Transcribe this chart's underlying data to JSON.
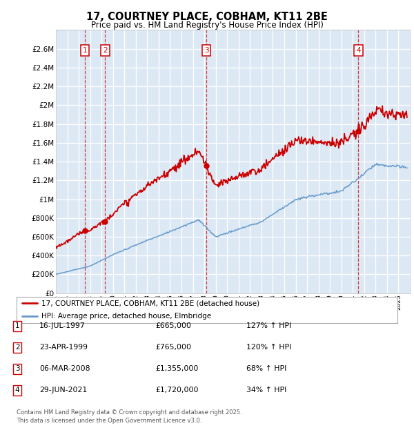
{
  "title": "17, COURTNEY PLACE, COBHAM, KT11 2BE",
  "subtitle": "Price paid vs. HM Land Registry's House Price Index (HPI)",
  "ylim": [
    0,
    2800000
  ],
  "yticks": [
    0,
    200000,
    400000,
    600000,
    800000,
    1000000,
    1200000,
    1400000,
    1600000,
    1800000,
    2000000,
    2200000,
    2400000,
    2600000
  ],
  "plot_bg": "#dce9f5",
  "sale_markers": [
    {
      "label": "1",
      "date_x": 1997.54,
      "price": 665000
    },
    {
      "label": "2",
      "date_x": 1999.31,
      "price": 765000
    },
    {
      "label": "3",
      "date_x": 2008.18,
      "price": 1355000
    },
    {
      "label": "4",
      "date_x": 2021.49,
      "price": 1720000
    }
  ],
  "sale_vlines_x": [
    1997.54,
    1999.31,
    2008.18,
    2021.49
  ],
  "hpi_line_color": "#6699cc",
  "price_line_color": "#cc0000",
  "legend_entries": [
    "17, COURTNEY PLACE, COBHAM, KT11 2BE (detached house)",
    "HPI: Average price, detached house, Elmbridge"
  ],
  "table_rows": [
    {
      "num": "1",
      "date": "16-JUL-1997",
      "price": "£665,000",
      "pct": "127% ↑ HPI"
    },
    {
      "num": "2",
      "date": "23-APR-1999",
      "price": "£765,000",
      "pct": "120% ↑ HPI"
    },
    {
      "num": "3",
      "date": "06-MAR-2008",
      "price": "£1,355,000",
      "pct": "68% ↑ HPI"
    },
    {
      "num": "4",
      "date": "29-JUN-2021",
      "price": "£1,720,000",
      "pct": "34% ↑ HPI"
    }
  ],
  "footer": "Contains HM Land Registry data © Crown copyright and database right 2025.\nThis data is licensed under the Open Government Licence v3.0.",
  "xmin": 1995,
  "xmax": 2026
}
